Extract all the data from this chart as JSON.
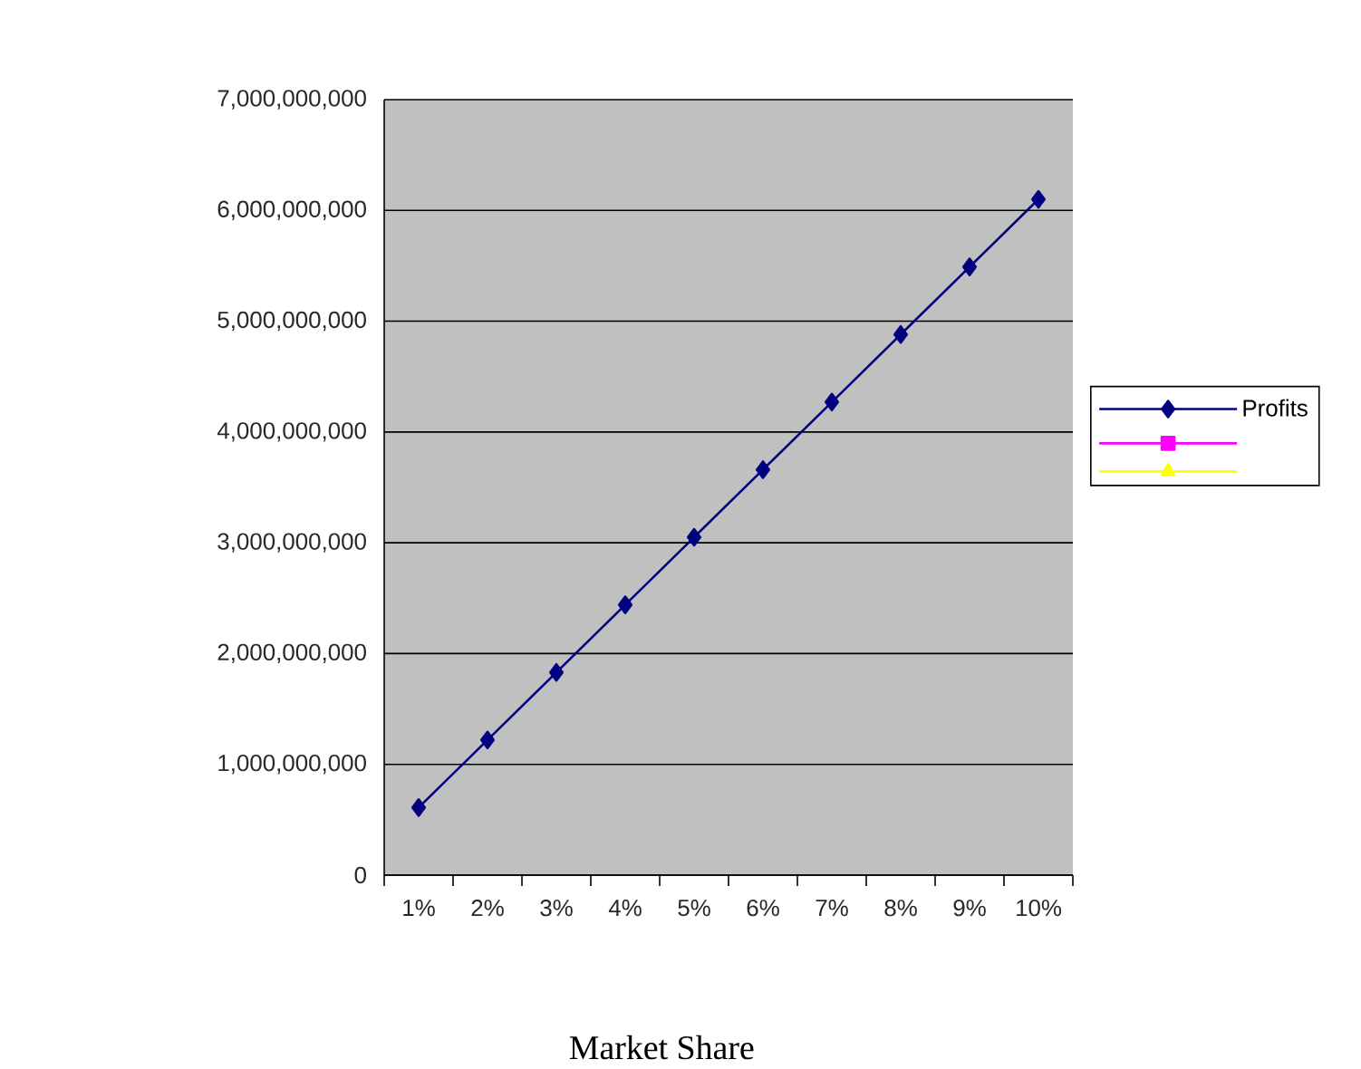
{
  "chart_data": {
    "type": "line",
    "xlabel": "Market Share",
    "categories": [
      "1%",
      "2%",
      "3%",
      "4%",
      "5%",
      "6%",
      "7%",
      "8%",
      "9%",
      "10%"
    ],
    "series": [
      {
        "name": "Profits",
        "color": "#000080",
        "marker": "diamond",
        "values": [
          610000000,
          1220000000,
          1830000000,
          2440000000,
          3050000000,
          3660000000,
          4270000000,
          4880000000,
          5490000000,
          6100000000
        ]
      },
      {
        "color": "#ff00ff",
        "marker": "square",
        "values": [
          null,
          null,
          null,
          null,
          null,
          null,
          null,
          null,
          null,
          null
        ]
      },
      {
        "color": "#ffff00",
        "marker": "triangle",
        "values": [
          null,
          null,
          null,
          null,
          null,
          null,
          null,
          null,
          null,
          null
        ]
      }
    ],
    "ylim": [
      0,
      7000000000
    ],
    "yticks": [
      0,
      {
        "value": 1000000000,
        "label": "1,000,000,000"
      },
      {
        "value": 2000000000,
        "label": "2,000,000,000"
      },
      {
        "value": 3000000000,
        "label": "3,000,000,000"
      },
      {
        "value": 4000000000,
        "label": "4,000,000,000"
      },
      {
        "value": 5000000000,
        "label": "5,000,000,000"
      },
      {
        "value": 6000000000,
        "label": "6,000,000,000"
      },
      {
        "value": 7000000000,
        "label": "7,000,000,000"
      }
    ],
    "grid": "y",
    "legend": "right"
  }
}
